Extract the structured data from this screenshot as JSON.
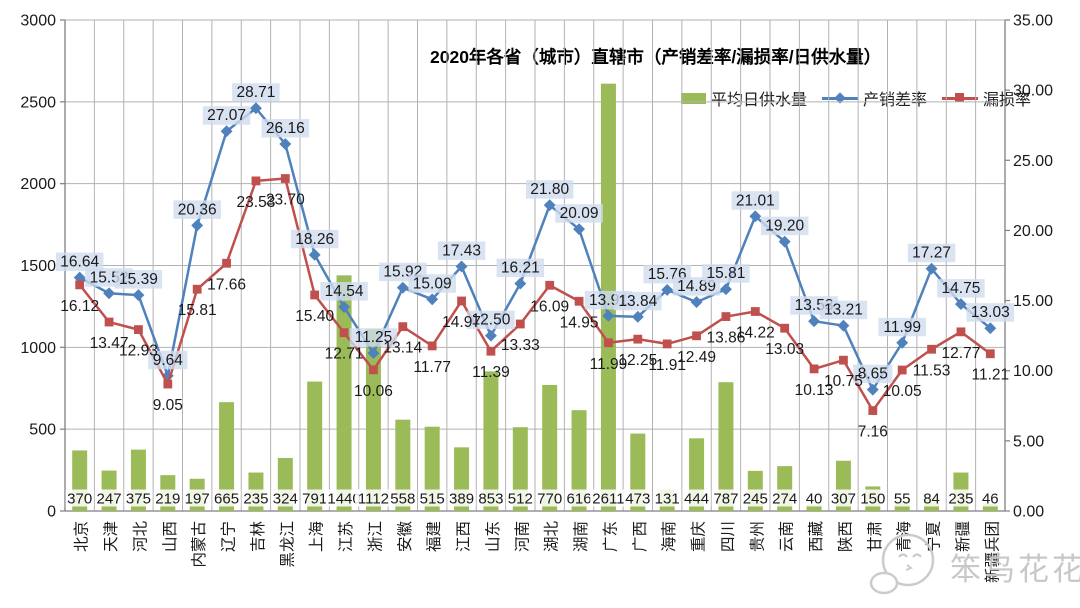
{
  "title": "2020年各省（城市）直辖市（产销差率/漏损率/日供水量）",
  "legend": [
    {
      "label": "平均日供水量",
      "color": "#9bbb59",
      "marker": "bar"
    },
    {
      "label": "产销差率",
      "color": "#4f81bd",
      "marker": "diamond"
    },
    {
      "label": "漏损率",
      "color": "#c0504d",
      "marker": "square"
    }
  ],
  "watermark": {
    "text": "笨鸟花花"
  },
  "chart_data": {
    "type": "bar",
    "subtype": "combo-bar-line",
    "title": "2020年各省（城市）直辖市（产销差率/漏损率/日供水量）",
    "categories": [
      "北京",
      "天津",
      "河北",
      "山西",
      "内蒙古",
      "辽宁",
      "吉林",
      "黑龙江",
      "上海",
      "江苏",
      "浙江",
      "安徽",
      "福建",
      "江西",
      "山东",
      "河南",
      "湖北",
      "湖南",
      "广东",
      "广西",
      "海南",
      "重庆",
      "四川",
      "贵州",
      "云南",
      "西藏",
      "陕西",
      "甘肃",
      "青海",
      "宁夏",
      "新疆",
      "新疆兵团"
    ],
    "series": [
      {
        "id": "avg-daily-supply",
        "name": "平均日供水量",
        "type": "bar",
        "axis": "left",
        "color": "#9bbb59",
        "values": [
          370,
          247,
          375,
          219,
          197,
          665,
          235,
          324,
          791,
          1440,
          1112,
          558,
          515,
          389,
          853,
          512,
          770,
          616,
          2611,
          473,
          131,
          444,
          787,
          245,
          274,
          40,
          307,
          150,
          55,
          84,
          235,
          46
        ]
      },
      {
        "id": "production-sales-diff-rate",
        "name": "产销差率",
        "type": "line",
        "axis": "right",
        "color": "#4f81bd",
        "marker": "diamond",
        "label_bg": "#cfdcef",
        "values": [
          16.64,
          15.52,
          15.39,
          9.64,
          20.36,
          27.07,
          28.71,
          26.16,
          18.26,
          14.54,
          11.25,
          15.92,
          15.09,
          17.43,
          12.5,
          16.21,
          21.8,
          20.09,
          13.91,
          13.84,
          15.76,
          14.89,
          15.81,
          21.01,
          19.2,
          13.53,
          13.21,
          8.65,
          11.99,
          17.27,
          14.75,
          13.03
        ]
      },
      {
        "id": "leakage-rate",
        "name": "漏损率",
        "type": "line",
        "axis": "right",
        "color": "#c0504d",
        "marker": "square",
        "values": [
          16.12,
          13.47,
          12.93,
          9.05,
          15.81,
          17.66,
          23.53,
          23.7,
          15.4,
          12.71,
          10.06,
          13.14,
          11.77,
          14.97,
          11.39,
          13.33,
          16.09,
          14.95,
          11.99,
          12.25,
          11.91,
          12.49,
          13.86,
          14.22,
          13.03,
          10.13,
          10.75,
          7.16,
          10.05,
          11.53,
          12.77,
          11.21
        ]
      }
    ],
    "left_axis": {
      "min": 0,
      "max": 3000,
      "step": 500,
      "ticks": [
        "0",
        "500",
        "1000",
        "1500",
        "2000",
        "2500",
        "3000"
      ]
    },
    "right_axis": {
      "min": 0,
      "max": 35,
      "step": 5,
      "ticks": [
        "0.00",
        "5.00",
        "10.00",
        "15.00",
        "20.00",
        "25.00",
        "30.00",
        "35.00"
      ]
    },
    "xlabel": "",
    "ylabel": "",
    "grid": true,
    "legend_position": "top-right",
    "x_label_rotation": -90
  }
}
